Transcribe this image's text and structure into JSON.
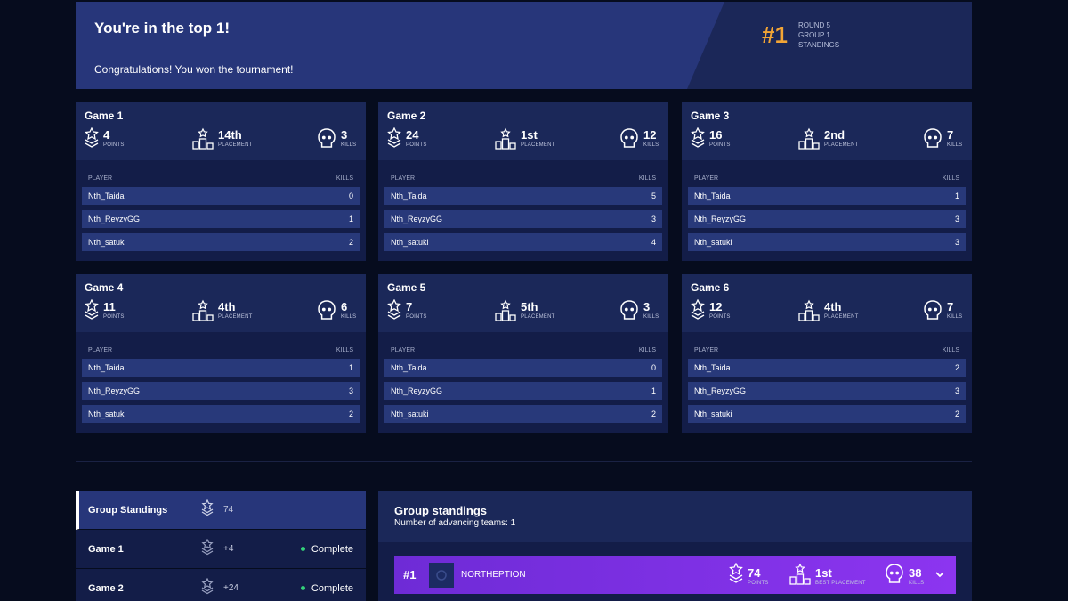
{
  "banner": {
    "title": "You're in the top 1!",
    "message": "Congratulations! You won the tournament!",
    "rank": "#1",
    "round": "ROUND 5",
    "group": "GROUP 1",
    "standings": "STANDINGS"
  },
  "labels": {
    "points": "POINTS",
    "placement": "PLACEMENT",
    "kills": "KILLS",
    "player": "PLAYER",
    "best_placement": "BEST PLACEMENT"
  },
  "games": [
    {
      "title": "Game 1",
      "points": "4",
      "placement": "14th",
      "kills": "3",
      "players": [
        {
          "name": "Nth_Taida",
          "kills": "0"
        },
        {
          "name": "Nth_ReyzyGG",
          "kills": "1"
        },
        {
          "name": "Nth_satuki",
          "kills": "2"
        }
      ]
    },
    {
      "title": "Game 2",
      "points": "24",
      "placement": "1st",
      "kills": "12",
      "players": [
        {
          "name": "Nth_Taida",
          "kills": "5"
        },
        {
          "name": "Nth_ReyzyGG",
          "kills": "3"
        },
        {
          "name": "Nth_satuki",
          "kills": "4"
        }
      ]
    },
    {
      "title": "Game 3",
      "points": "16",
      "placement": "2nd",
      "kills": "7",
      "players": [
        {
          "name": "Nth_Taida",
          "kills": "1"
        },
        {
          "name": "Nth_ReyzyGG",
          "kills": "3"
        },
        {
          "name": "Nth_satuki",
          "kills": "3"
        }
      ]
    },
    {
      "title": "Game 4",
      "points": "11",
      "placement": "4th",
      "kills": "6",
      "players": [
        {
          "name": "Nth_Taida",
          "kills": "1"
        },
        {
          "name": "Nth_ReyzyGG",
          "kills": "3"
        },
        {
          "name": "Nth_satuki",
          "kills": "2"
        }
      ]
    },
    {
      "title": "Game 5",
      "points": "7",
      "placement": "5th",
      "kills": "3",
      "players": [
        {
          "name": "Nth_Taida",
          "kills": "0"
        },
        {
          "name": "Nth_ReyzyGG",
          "kills": "1"
        },
        {
          "name": "Nth_satuki",
          "kills": "2"
        }
      ]
    },
    {
      "title": "Game 6",
      "points": "12",
      "placement": "4th",
      "kills": "7",
      "players": [
        {
          "name": "Nth_Taida",
          "kills": "2"
        },
        {
          "name": "Nth_ReyzyGG",
          "kills": "3"
        },
        {
          "name": "Nth_satuki",
          "kills": "2"
        }
      ]
    }
  ],
  "sidebar": {
    "items": [
      {
        "title": "Group Standings",
        "points": "74",
        "status": ""
      },
      {
        "title": "Game 1",
        "points": "+4",
        "status": "Complete"
      },
      {
        "title": "Game 2",
        "points": "+24",
        "status": "Complete"
      }
    ]
  },
  "standings": {
    "title": "Group standings",
    "subtitle": "Number of advancing teams: 1",
    "team": {
      "rank": "#1",
      "name": "NORTHEPTION",
      "points": "74",
      "best_placement": "1st",
      "kills": "38"
    }
  },
  "colors": {
    "accent": "#f3a535",
    "team_row": "#7b2fe3",
    "status_green": "#33d27a"
  }
}
